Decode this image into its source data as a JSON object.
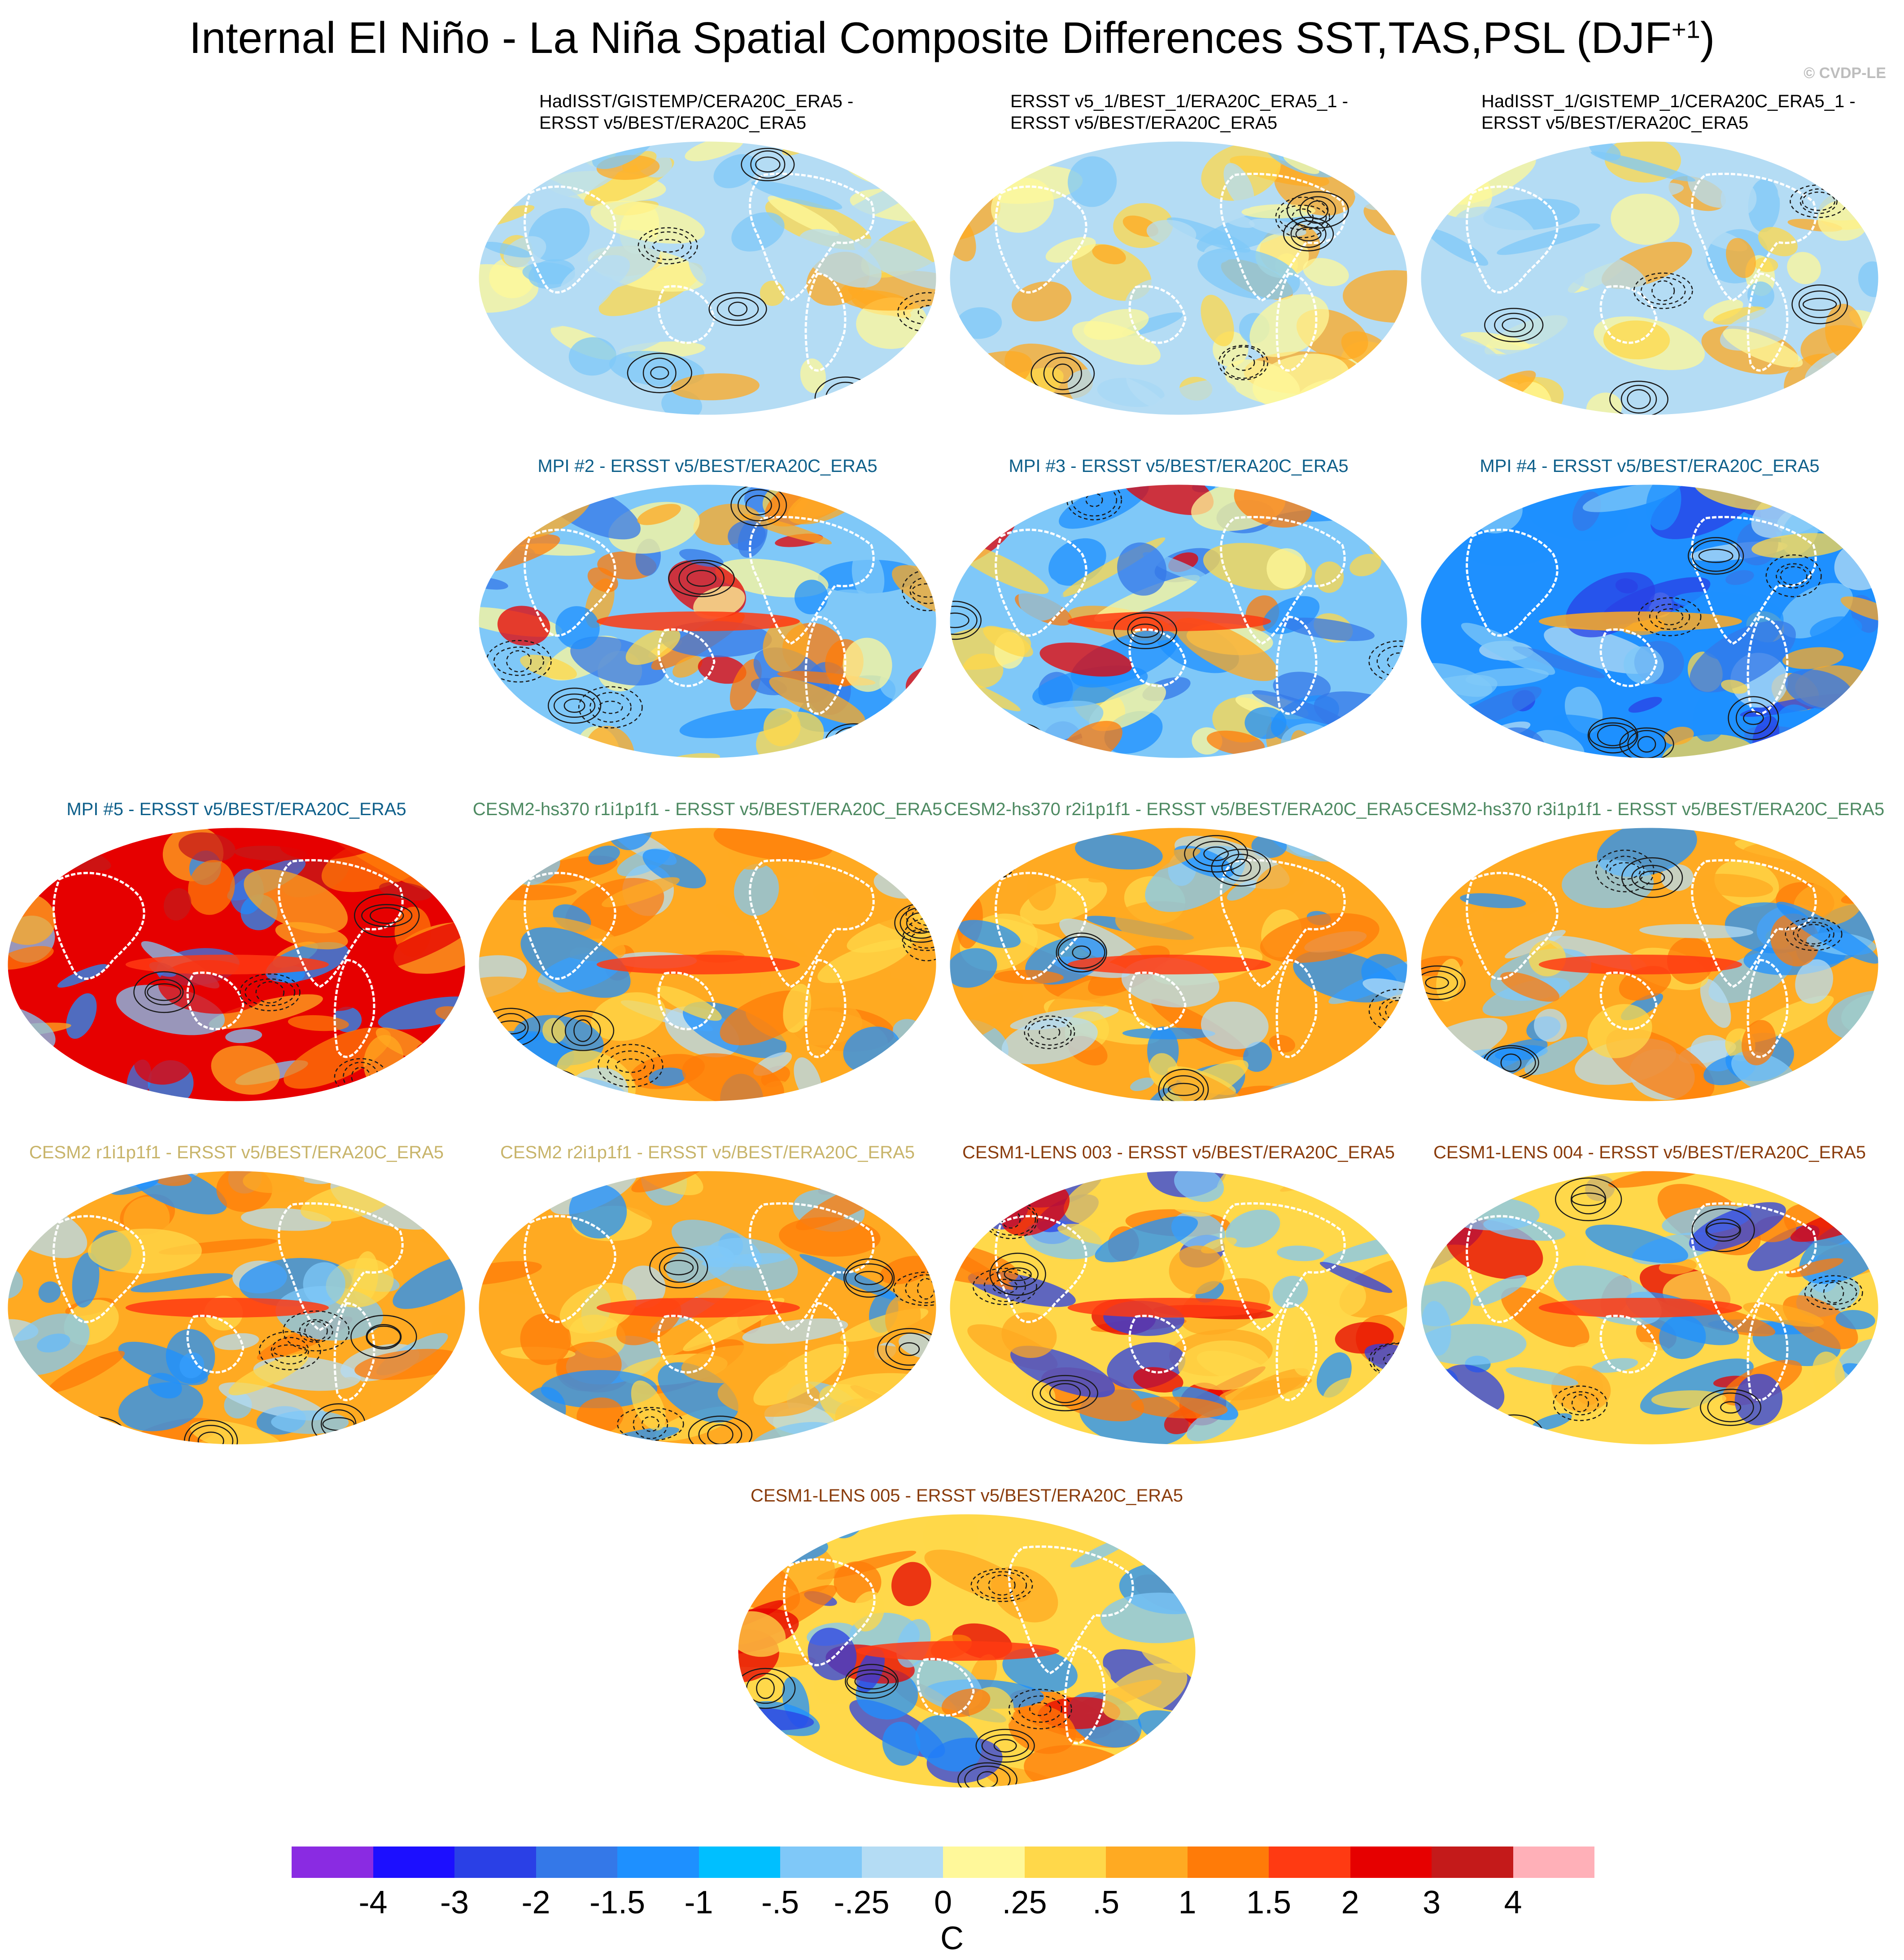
{
  "header": {
    "title": "Internal El Niño - La Niña Spatial Composite Differences SST,TAS,PSL (DJF",
    "title_sup": "+1",
    "title_end": ")",
    "copyright": "© CVDP-LE"
  },
  "panels": [
    {
      "line1": "HadISST/GISTEMP/CERA20C_ERA5 -",
      "line2": "ERSST v5/BEST/ERA20C_ERA5",
      "color": "#000000",
      "pattern": "weak"
    },
    {
      "line1": "ERSST v5_1/BEST_1/ERA20C_ERA5_1 -",
      "line2": "ERSST v5/BEST/ERA20C_ERA5",
      "color": "#000000",
      "pattern": "weak"
    },
    {
      "line1": "HadISST_1/GISTEMP_1/CERA20C_ERA5_1 -",
      "line2": "ERSST v5/BEST/ERA20C_ERA5",
      "color": "#000000",
      "pattern": "weak"
    },
    {
      "line1": "MPI #2 - ERSST v5/BEST/ERA20C_ERA5",
      "color": "#0e5f8a",
      "pattern": "mixed"
    },
    {
      "line1": "MPI #3 - ERSST v5/BEST/ERA20C_ERA5",
      "color": "#0e5f8a",
      "pattern": "mixed"
    },
    {
      "line1": "MPI #4 - ERSST v5/BEST/ERA20C_ERA5",
      "color": "#0e5f8a",
      "pattern": "cool"
    },
    {
      "line1": "MPI #5 - ERSST v5/BEST/ERA20C_ERA5",
      "color": "#0e5f8a",
      "pattern": "strong"
    },
    {
      "line1": "CESM2-hs370 r1i1p1f1 - ERSST v5/BEST/ERA20C_ERA5",
      "color": "#4e8a62",
      "pattern": "enso"
    },
    {
      "line1": "CESM2-hs370 r2i1p1f1 - ERSST v5/BEST/ERA20C_ERA5",
      "color": "#4e8a62",
      "pattern": "enso"
    },
    {
      "line1": "CESM2-hs370 r3i1p1f1 - ERSST v5/BEST/ERA20C_ERA5",
      "color": "#4e8a62",
      "pattern": "enso"
    },
    {
      "line1": "CESM2 r1i1p1f1 - ERSST v5/BEST/ERA20C_ERA5",
      "color": "#c8b46a",
      "pattern": "enso"
    },
    {
      "line1": "CESM2 r2i1p1f1 - ERSST v5/BEST/ERA20C_ERA5",
      "color": "#c8b46a",
      "pattern": "enso"
    },
    {
      "line1": "CESM1-LENS 003 - ERSST v5/BEST/ERA20C_ERA5",
      "color": "#8a3c0c",
      "pattern": "warm"
    },
    {
      "line1": "CESM1-LENS 004 - ERSST v5/BEST/ERA20C_ERA5",
      "color": "#8a3c0c",
      "pattern": "warm"
    },
    {
      "line1": "CESM1-LENS 005 - ERSST v5/BEST/ERA20C_ERA5",
      "color": "#8a3c0c",
      "pattern": "warm"
    }
  ],
  "colorbar": {
    "colors": [
      "#8a2be2",
      "#1c0fff",
      "#2a40e6",
      "#3478e8",
      "#1e90ff",
      "#00bfff",
      "#7fc8f8",
      "#b4dcf4",
      "#fff89a",
      "#ffd84a",
      "#ffaa22",
      "#ff7b08",
      "#ff3a12",
      "#e60000",
      "#c41a1a",
      "#ffb0b8"
    ],
    "ticks": [
      "-4",
      "-3",
      "-2",
      "-1.5",
      "-1",
      "-.5",
      "-.25",
      "0",
      ".25",
      ".5",
      "1",
      "1.5",
      "2",
      "3",
      "4"
    ],
    "unit": "C"
  }
}
